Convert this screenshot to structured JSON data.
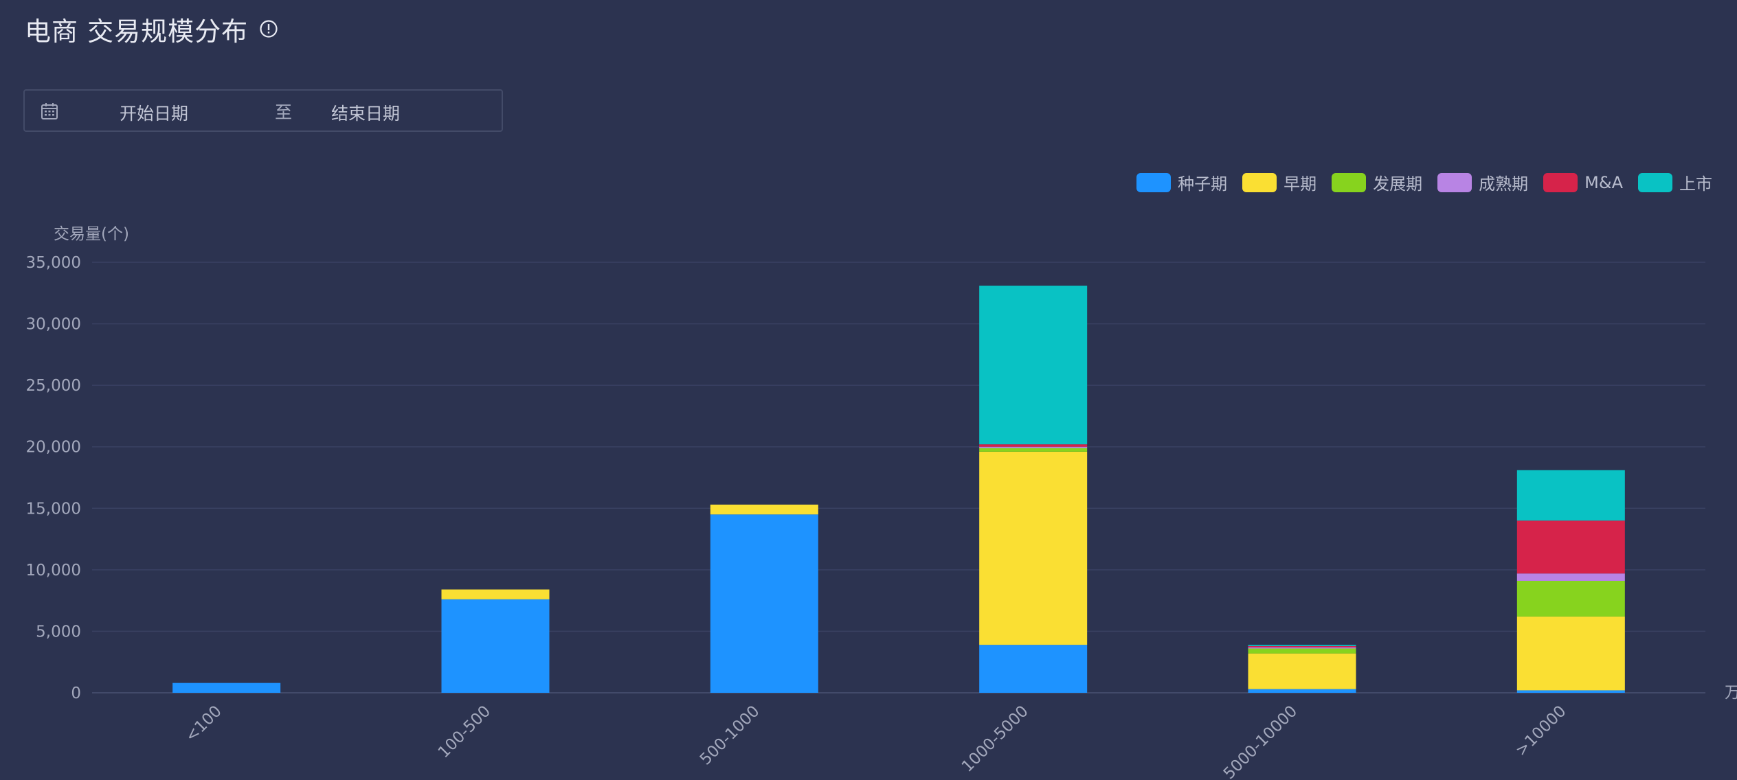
{
  "header": {
    "title": "电商 交易规模分布",
    "info_icon": "info-circle-icon"
  },
  "date_range": {
    "calendar_icon": "calendar-icon",
    "start_placeholder": "开始日期",
    "separator": "至",
    "end_placeholder": "结束日期"
  },
  "legend": {
    "items": [
      {
        "label": "种子期",
        "color": "#1e93ff"
      },
      {
        "label": "早期",
        "color": "#fadf33"
      },
      {
        "label": "发展期",
        "color": "#87d31e"
      },
      {
        "label": "成熟期",
        "color": "#b884e4"
      },
      {
        "label": "M&A",
        "color": "#d6234a"
      },
      {
        "label": "上市",
        "color": "#09c2c4"
      }
    ]
  },
  "chart_data": {
    "type": "bar",
    "stacked": true,
    "ylabel": "交易量(个)",
    "xunit": "万",
    "ylim": [
      0,
      35000
    ],
    "yticks": [
      "0",
      "5,000",
      "10,000",
      "15,000",
      "20,000",
      "25,000",
      "30,000",
      "35,000"
    ],
    "grid": true,
    "legend_position": "top-right",
    "categories": [
      "<100",
      "100-500",
      "500-1000",
      "1000-5000",
      "5000-10000",
      ">10000"
    ],
    "series": [
      {
        "name": "种子期",
        "color": "#1e93ff",
        "values": [
          800,
          7600,
          14500,
          3900,
          300,
          200
        ]
      },
      {
        "name": "早期",
        "color": "#fadf33",
        "values": [
          0,
          800,
          800,
          15700,
          2900,
          6000
        ]
      },
      {
        "name": "发展期",
        "color": "#87d31e",
        "values": [
          0,
          0,
          0,
          300,
          400,
          2900
        ]
      },
      {
        "name": "成熟期",
        "color": "#b884e4",
        "values": [
          0,
          0,
          0,
          100,
          100,
          600
        ]
      },
      {
        "name": "M&A",
        "color": "#d6234a",
        "values": [
          0,
          0,
          0,
          200,
          100,
          4300
        ]
      },
      {
        "name": "上市",
        "color": "#09c2c4",
        "values": [
          0,
          0,
          0,
          12900,
          100,
          4100
        ]
      }
    ]
  }
}
